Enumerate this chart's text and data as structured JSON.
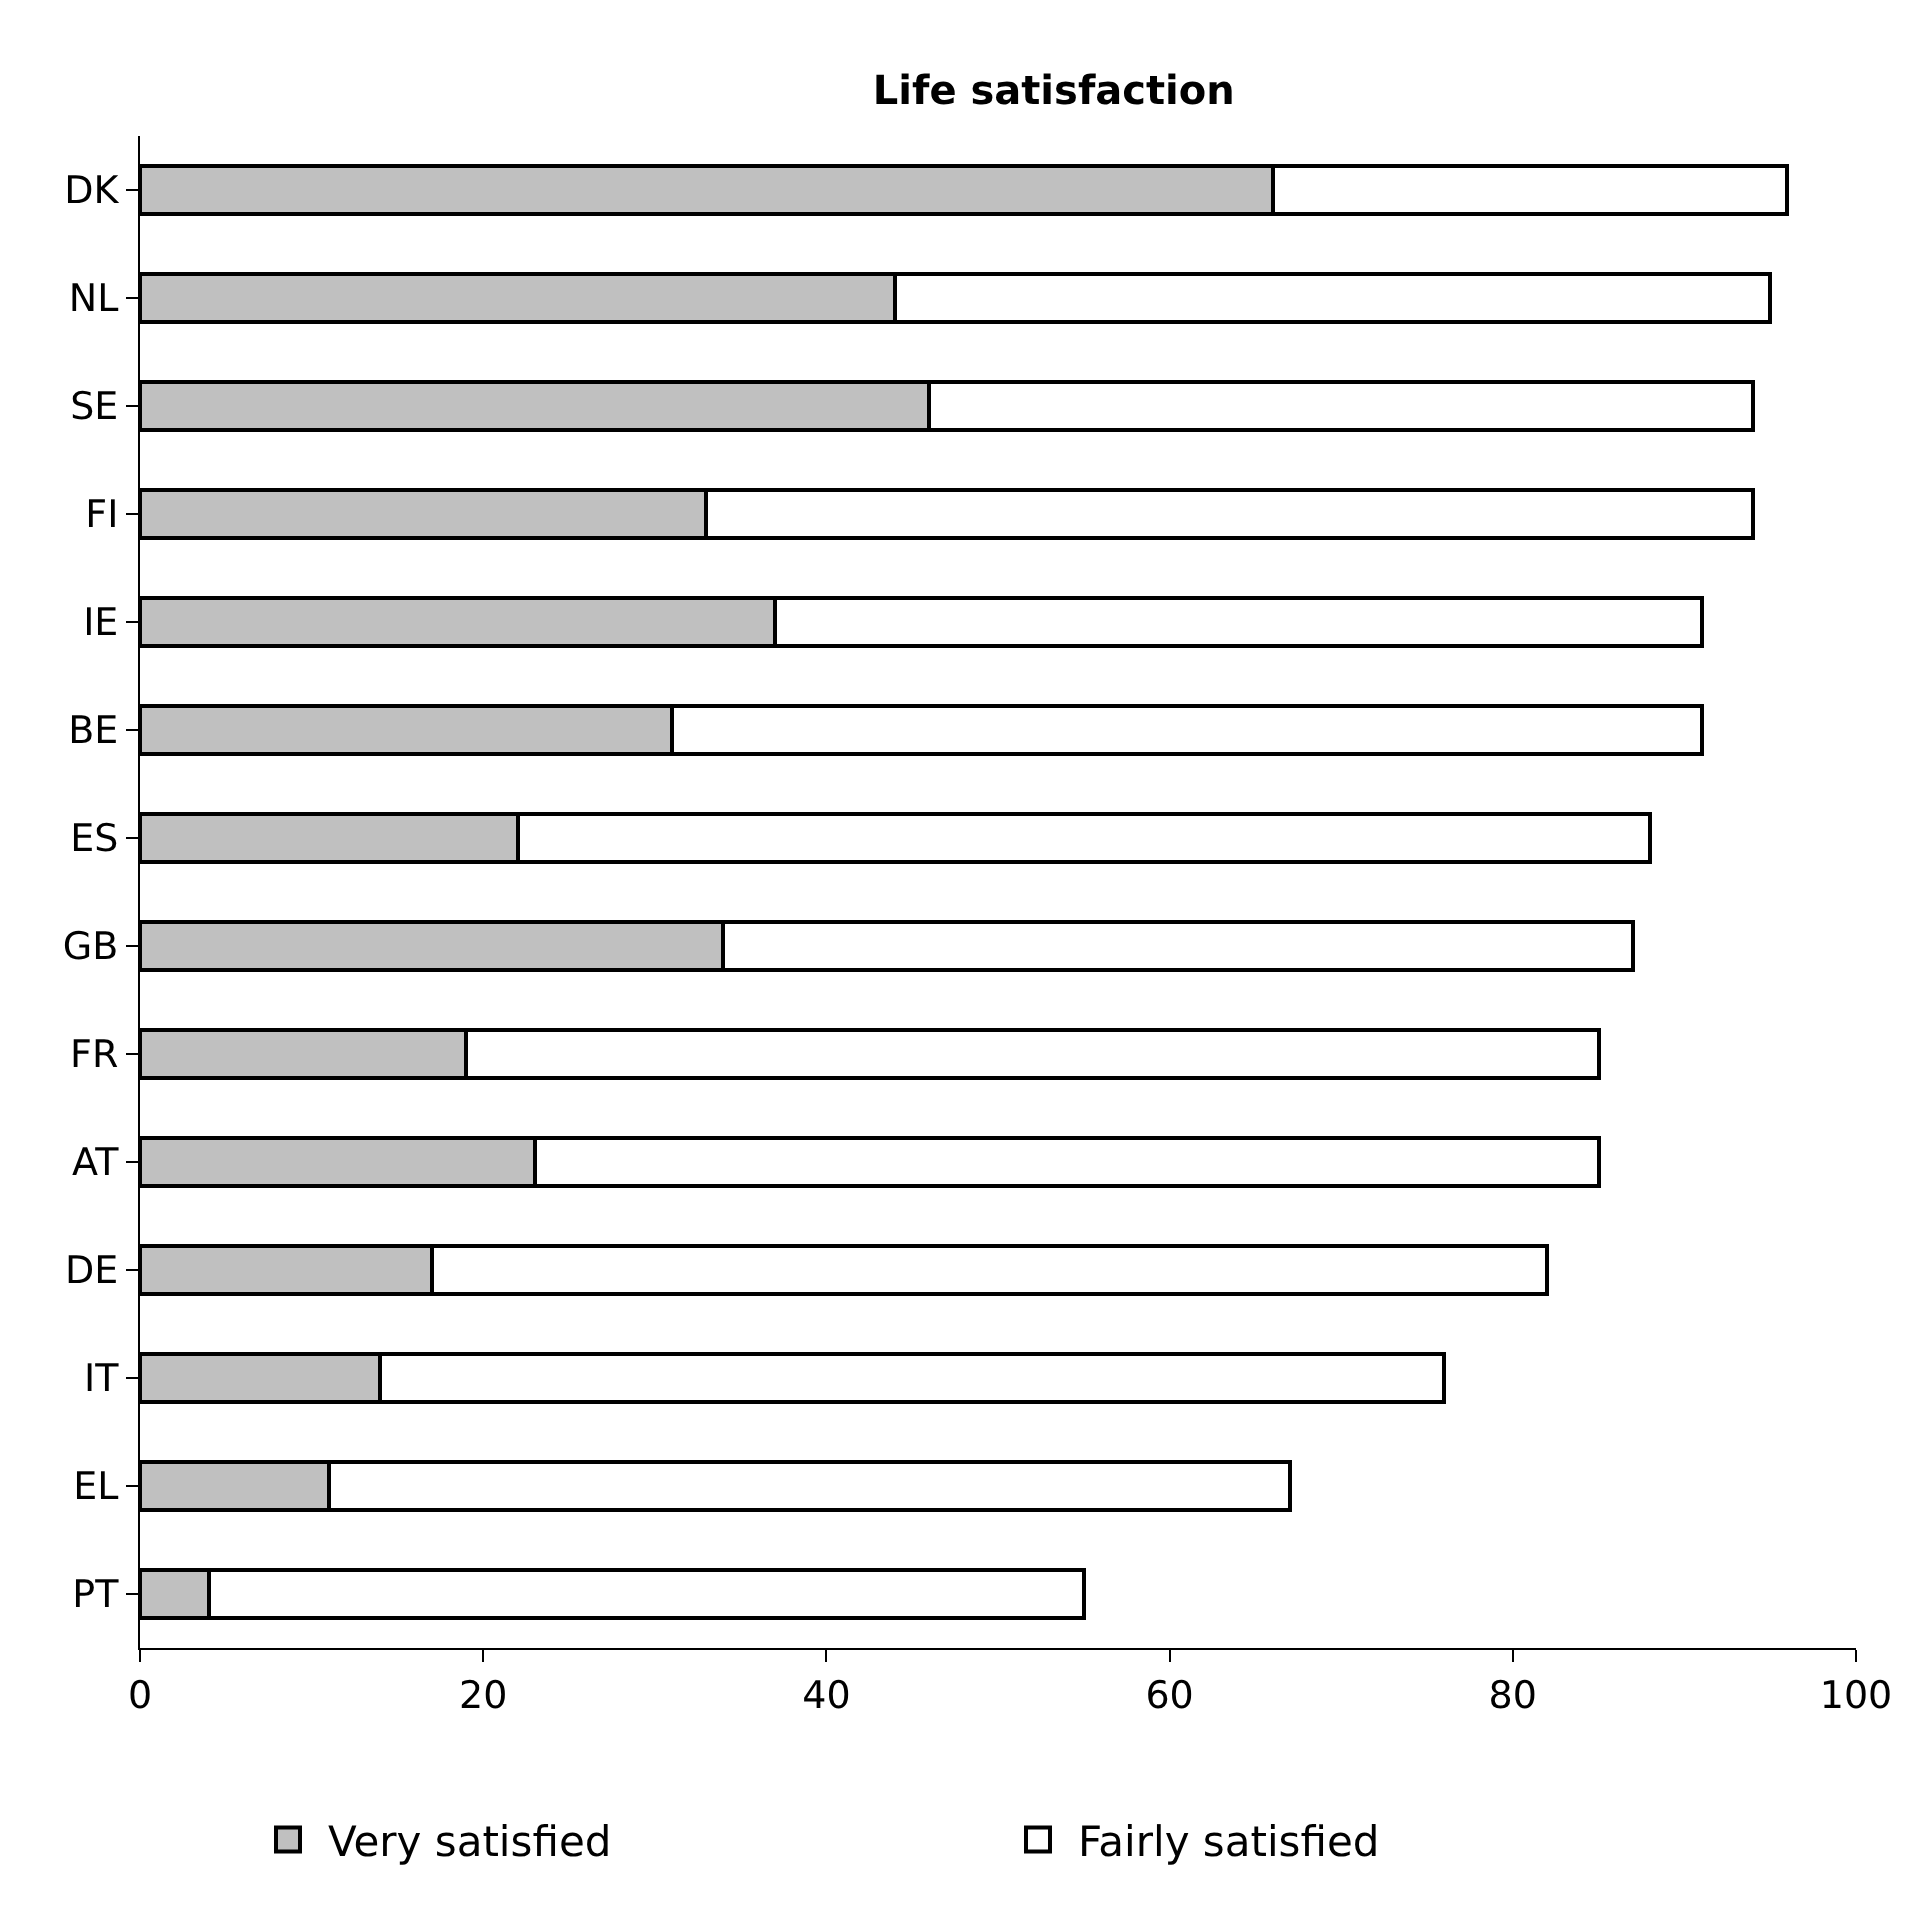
{
  "chart_data": {
    "type": "bar",
    "orientation": "horizontal",
    "stacked": true,
    "title": "Life satisfaction",
    "categories": [
      "DK",
      "NL",
      "SE",
      "FI",
      "IE",
      "BE",
      "ES",
      "GB",
      "FR",
      "AT",
      "DE",
      "IT",
      "EL",
      "PT"
    ],
    "series": [
      {
        "name": "Very satisfied",
        "color": "#c0c0c0",
        "values": [
          66,
          44,
          46,
          33,
          37,
          31,
          22,
          34,
          19,
          23,
          17,
          14,
          11,
          4
        ]
      },
      {
        "name": "Fairly satisfied",
        "color": "#ffffff",
        "values": [
          30,
          51,
          48,
          61,
          54,
          60,
          66,
          53,
          66,
          62,
          65,
          62,
          56,
          51
        ]
      }
    ],
    "xlim": [
      0,
      100
    ],
    "xticks": [
      0,
      20,
      40,
      60,
      80,
      100
    ],
    "legend": "bottom"
  }
}
